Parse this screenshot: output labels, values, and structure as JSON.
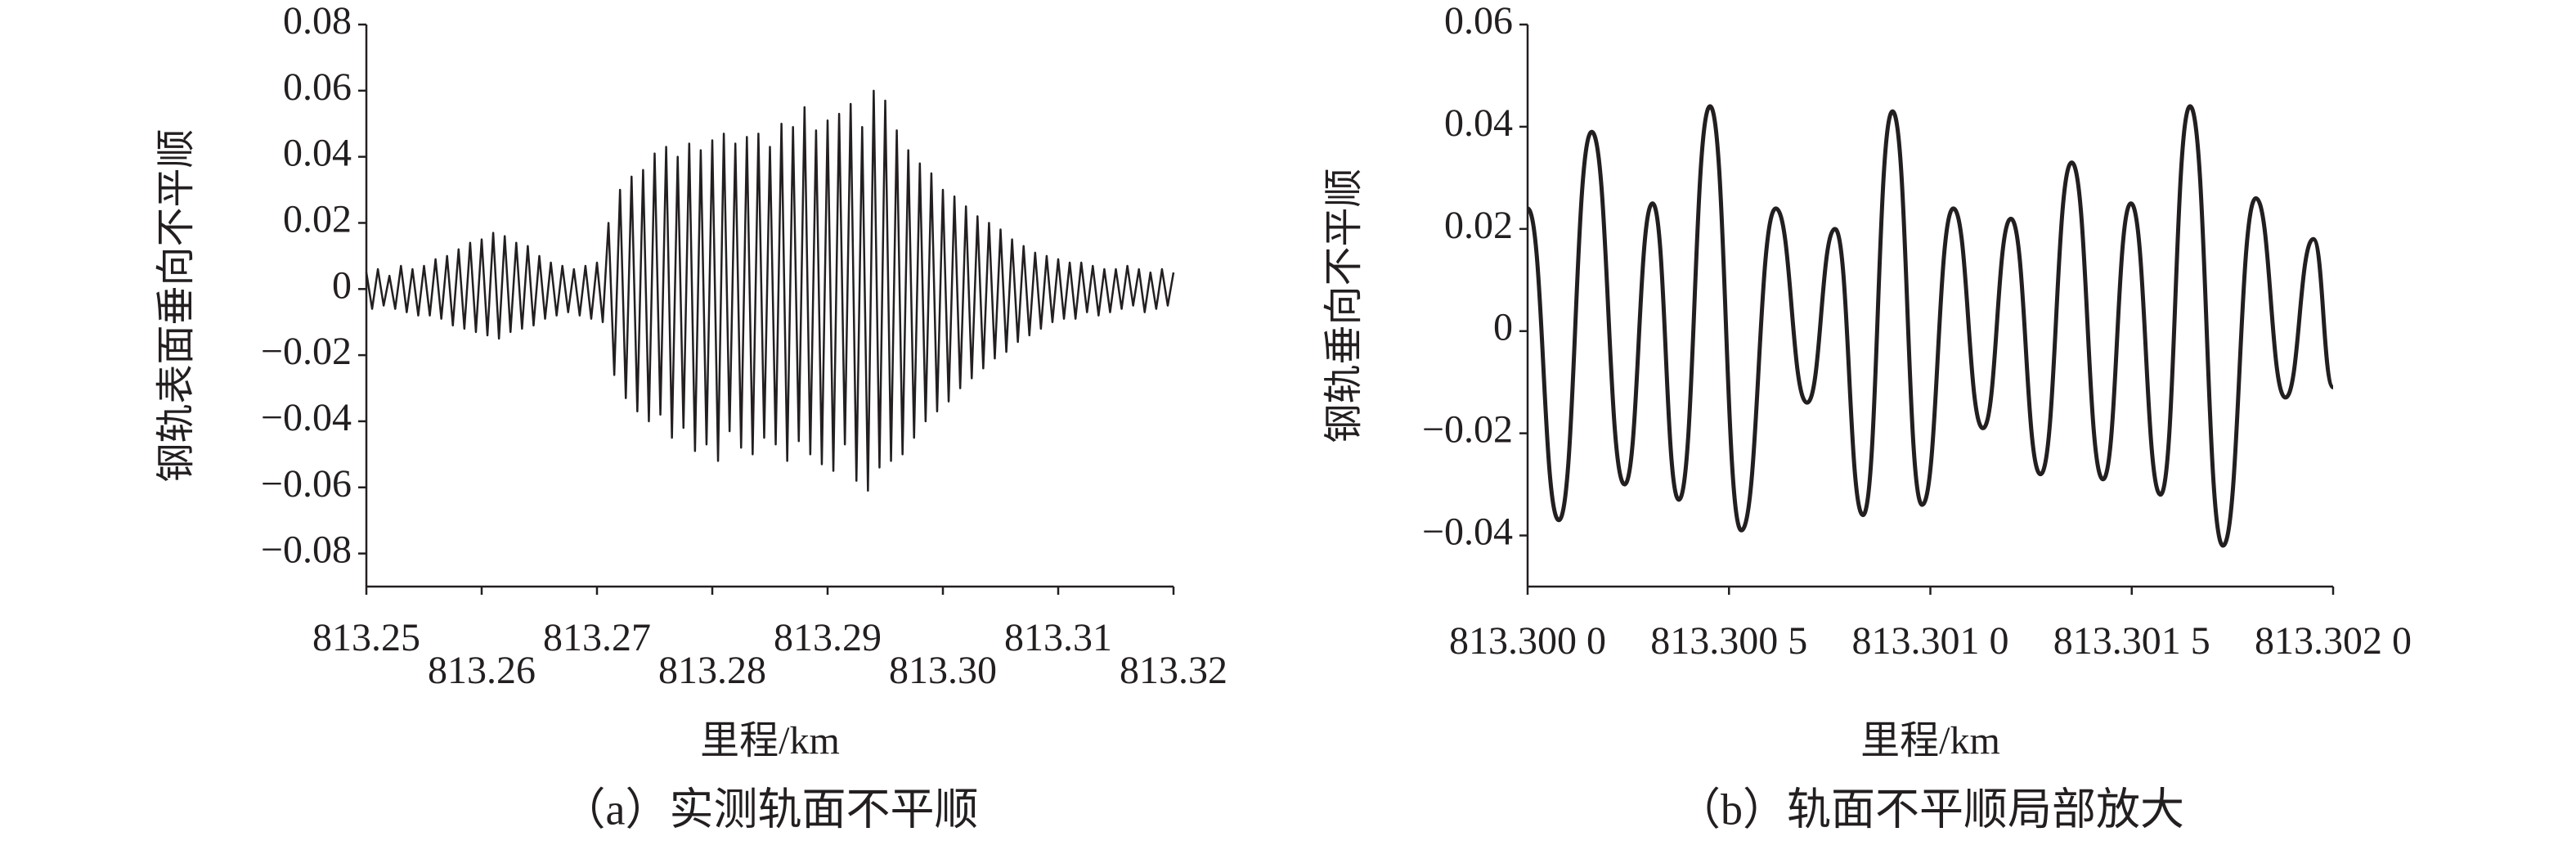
{
  "chart_data": [
    {
      "type": "line",
      "title": "（a）实测轨面不平顺",
      "xlabel": "里程/km",
      "ylabel": "钢轨表面垂向不平顺",
      "color": "#231f20",
      "xlim": [
        813.25,
        813.32
      ],
      "xticks": [
        813.25,
        813.26,
        813.27,
        813.28,
        813.29,
        {
          "value": 813.3,
          "label": "813.30"
        },
        813.31,
        813.32
      ],
      "ylim": [
        -0.09,
        0.08
      ],
      "yticks": [
        0.08,
        0.06,
        0.04,
        0.02,
        0,
        {
          "value": -0.02,
          "label": "−0.02"
        },
        {
          "value": -0.04,
          "label": "−0.04"
        },
        {
          "value": -0.06,
          "label": "−0.06"
        },
        {
          "value": -0.08,
          "label": "−0.08"
        }
      ],
      "x": [
        813.25,
        813.2505,
        813.251,
        813.2515,
        813.252,
        813.2525,
        813.253,
        813.2535,
        813.254,
        813.2545,
        813.255,
        813.2555,
        813.256,
        813.2565,
        813.257,
        813.2575,
        813.258,
        813.2585,
        813.259,
        813.2595,
        813.26,
        813.2605,
        813.261,
        813.2615,
        813.262,
        813.2625,
        813.263,
        813.2635,
        813.264,
        813.2645,
        813.265,
        813.2655,
        813.266,
        813.2665,
        813.267,
        813.2675,
        813.268,
        813.2685,
        813.269,
        813.2695,
        813.27,
        813.2705,
        813.271,
        813.2715,
        813.272,
        813.2725,
        813.273,
        813.2735,
        813.274,
        813.2745,
        813.275,
        813.2755,
        813.276,
        813.2765,
        813.277,
        813.2775,
        813.278,
        813.2785,
        813.279,
        813.2795,
        813.28,
        813.2805,
        813.281,
        813.2815,
        813.282,
        813.2825,
        813.283,
        813.2835,
        813.284,
        813.2845,
        813.285,
        813.2855,
        813.286,
        813.2865,
        813.287,
        813.2875,
        813.288,
        813.2885,
        813.289,
        813.2895,
        813.29,
        813.2905,
        813.291,
        813.2915,
        813.292,
        813.2925,
        813.293,
        813.2935,
        813.294,
        813.2945,
        813.295,
        813.2955,
        813.296,
        813.2965,
        813.297,
        813.2975,
        813.298,
        813.2985,
        813.299,
        813.2995,
        813.3,
        813.3005,
        813.301,
        813.3015,
        813.302,
        813.3025,
        813.303,
        813.3035,
        813.304,
        813.3045,
        813.305,
        813.3055,
        813.306,
        813.3065,
        813.307,
        813.3075,
        813.308,
        813.3085,
        813.309,
        813.3095,
        813.31,
        813.3105,
        813.311,
        813.3115,
        813.312,
        813.3125,
        813.313,
        813.3135,
        813.314,
        813.3145,
        813.315,
        813.3155,
        813.316,
        813.3165,
        813.317,
        813.3175,
        813.318,
        813.3185,
        813.319,
        813.3195,
        813.32
      ],
      "values": [
        0.005,
        -0.006,
        0.006,
        -0.005,
        0.004,
        -0.006,
        0.007,
        -0.007,
        0.006,
        -0.008,
        0.007,
        -0.008,
        0.009,
        -0.009,
        0.01,
        -0.011,
        0.012,
        -0.012,
        0.014,
        -0.013,
        0.015,
        -0.014,
        0.017,
        -0.015,
        0.016,
        -0.013,
        0.014,
        -0.012,
        0.013,
        -0.011,
        0.01,
        -0.009,
        0.008,
        -0.008,
        0.007,
        -0.007,
        0.006,
        -0.008,
        0.007,
        -0.009,
        0.008,
        -0.01,
        0.02,
        -0.026,
        0.03,
        -0.033,
        0.034,
        -0.037,
        0.036,
        -0.04,
        0.041,
        -0.038,
        0.043,
        -0.045,
        0.04,
        -0.042,
        0.044,
        -0.049,
        0.042,
        -0.047,
        0.045,
        -0.052,
        0.047,
        -0.043,
        0.044,
        -0.048,
        0.046,
        -0.05,
        0.047,
        -0.045,
        0.043,
        -0.047,
        0.05,
        -0.052,
        0.049,
        -0.046,
        0.055,
        -0.05,
        0.048,
        -0.053,
        0.051,
        -0.055,
        0.053,
        -0.047,
        0.056,
        -0.058,
        0.049,
        -0.061,
        0.06,
        -0.054,
        0.057,
        -0.052,
        0.048,
        -0.05,
        0.042,
        -0.045,
        0.038,
        -0.04,
        0.035,
        -0.037,
        0.03,
        -0.034,
        0.028,
        -0.03,
        0.025,
        -0.027,
        0.022,
        -0.024,
        0.02,
        -0.021,
        0.018,
        -0.019,
        0.015,
        -0.016,
        0.013,
        -0.014,
        0.011,
        -0.012,
        0.01,
        -0.01,
        0.009,
        -0.009,
        0.008,
        -0.009,
        0.008,
        -0.007,
        0.007,
        -0.008,
        0.006,
        -0.007,
        0.006,
        -0.006,
        0.007,
        -0.005,
        0.006,
        -0.007,
        0.005,
        -0.006,
        0.006,
        -0.005,
        0.005
      ]
    },
    {
      "type": "line",
      "title": "（b）轨面不平顺局部放大",
      "xlabel": "里程/km",
      "ylabel": "钢轨垂向不平顺",
      "color": "#231f20",
      "xlim": [
        813.3,
        813.302
      ],
      "xticks": [
        {
          "value": 813.3,
          "label": "813.300 0"
        },
        {
          "value": 813.3005,
          "label": "813.300 5"
        },
        {
          "value": 813.301,
          "label": "813.301 0"
        },
        {
          "value": 813.3015,
          "label": "813.301 5"
        },
        {
          "value": 813.302,
          "label": "813.302 0"
        }
      ],
      "ylim": [
        -0.05,
        0.06
      ],
      "yticks": [
        0.06,
        0.04,
        0.02,
        0,
        {
          "value": -0.02,
          "label": "−0.02"
        },
        {
          "value": -0.04,
          "label": "−0.04"
        }
      ],
      "x": [
        813.3,
        813.3000776,
        813.3001592,
        813.3002408,
        813.3003102,
        813.3003755,
        813.3004531,
        813.3005306,
        813.3006163,
        813.3006939,
        813.3007633,
        813.3008327,
        813.3009061,
        813.3009796,
        813.3010571,
        813.3011306,
        813.3012,
        813.3012735,
        813.301351,
        813.3014286,
        813.301498,
        813.3015714,
        813.3016449,
        813.3017265,
        813.3018082,
        813.3018816,
        813.301951,
        813.302
      ],
      "values": [
        0.024,
        -0.037,
        0.039,
        -0.03,
        0.025,
        -0.033,
        0.044,
        -0.039,
        0.024,
        -0.014,
        0.02,
        -0.036,
        0.043,
        -0.034,
        0.024,
        -0.019,
        0.022,
        -0.028,
        0.033,
        -0.029,
        0.025,
        -0.032,
        0.044,
        -0.042,
        0.026,
        -0.013,
        0.018,
        -0.011
      ]
    }
  ]
}
